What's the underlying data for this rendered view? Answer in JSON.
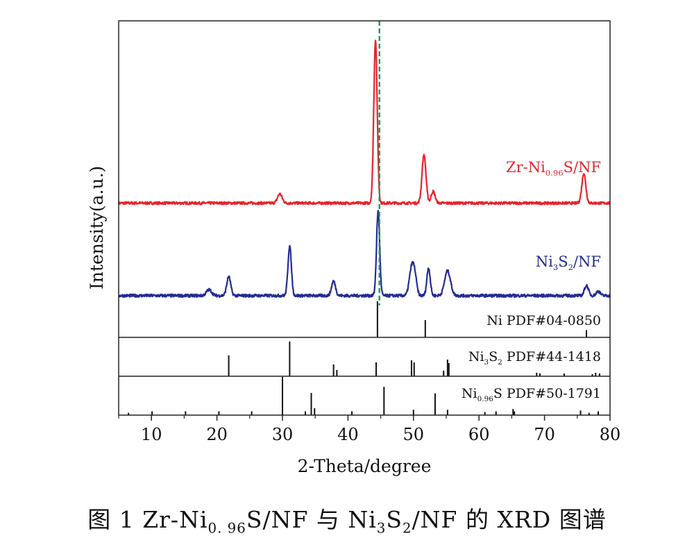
{
  "chart_data": {
    "type": "line",
    "xlabel": "2-Theta/degree",
    "ylabel": "Intensity(a.u.)",
    "xlim": [
      5,
      80
    ],
    "xticks": [
      10,
      20,
      30,
      40,
      50,
      60,
      70,
      80
    ],
    "reference_line_x": 44.8,
    "reference_line_color": "#1a9a55",
    "series": [
      {
        "name": "Zr-Ni0.96S/NF",
        "label_main": "Zr-Ni",
        "label_sub": "0.96",
        "label_tail": "S/NF",
        "color": "#e8232b",
        "baseline": 0.1,
        "noise": 0.08,
        "peaks": [
          {
            "x": 29.6,
            "h": 0.55,
            "w": 0.35
          },
          {
            "x": 44.2,
            "h": 9.8,
            "w": 0.26
          },
          {
            "x": 51.6,
            "h": 2.9,
            "w": 0.3
          },
          {
            "x": 53.0,
            "h": 0.7,
            "w": 0.3
          },
          {
            "x": 76.0,
            "h": 1.8,
            "w": 0.3
          }
        ]
      },
      {
        "name": "Ni3S2/NF",
        "label_main": "Ni",
        "label_sub": "3",
        "label_mid": "S",
        "label_sub2": "2",
        "label_tail": "/NF",
        "color": "#232c93",
        "baseline": 0.1,
        "noise": 0.1,
        "peaks": [
          {
            "x": 18.8,
            "h": 0.4,
            "w": 0.4
          },
          {
            "x": 21.8,
            "h": 1.3,
            "w": 0.3
          },
          {
            "x": 31.1,
            "h": 3.4,
            "w": 0.26
          },
          {
            "x": 37.8,
            "h": 1.0,
            "w": 0.3
          },
          {
            "x": 44.6,
            "h": 5.8,
            "w": 0.24
          },
          {
            "x": 49.7,
            "h": 1.8,
            "w": 0.35
          },
          {
            "x": 50.2,
            "h": 1.2,
            "w": 0.3
          },
          {
            "x": 52.3,
            "h": 1.9,
            "w": 0.26
          },
          {
            "x": 55.2,
            "h": 1.7,
            "w": 0.45
          },
          {
            "x": 76.4,
            "h": 0.7,
            "w": 0.3
          },
          {
            "x": 78.2,
            "h": 0.3,
            "w": 0.3
          }
        ]
      }
    ],
    "reference_patterns": [
      {
        "label_main": "Ni PDF#04-0850",
        "sticks": [
          [
            44.5,
            1.0
          ],
          [
            51.8,
            0.48
          ],
          [
            76.4,
            0.2
          ]
        ]
      },
      {
        "label_main": "Ni",
        "label_sub": "3",
        "label_mid": "S",
        "label_sub2": "2",
        "label_tail": " PDF#44-1418",
        "sticks": [
          [
            21.8,
            0.6
          ],
          [
            31.1,
            1.0
          ],
          [
            37.8,
            0.34
          ],
          [
            38.3,
            0.18
          ],
          [
            44.3,
            0.4
          ],
          [
            49.7,
            0.46
          ],
          [
            50.1,
            0.4
          ],
          [
            54.6,
            0.16
          ],
          [
            55.2,
            0.48
          ],
          [
            55.4,
            0.38
          ],
          [
            68.8,
            0.1
          ],
          [
            69.3,
            0.08
          ],
          [
            73.0,
            0.08
          ],
          [
            77.3,
            0.06
          ],
          [
            77.8,
            0.1
          ],
          [
            78.4,
            0.08
          ]
        ]
      },
      {
        "label_main": "Ni",
        "label_sub": "0.96",
        "label_tail": "S PDF#50-1791",
        "sticks": [
          [
            6.5,
            0.06
          ],
          [
            10.1,
            0.1
          ],
          [
            15.2,
            0.1
          ],
          [
            20.3,
            0.1
          ],
          [
            25.3,
            0.1
          ],
          [
            30.0,
            1.0
          ],
          [
            33.5,
            0.1
          ],
          [
            34.4,
            0.58
          ],
          [
            34.9,
            0.18
          ],
          [
            40.6,
            0.1
          ],
          [
            45.5,
            0.74
          ],
          [
            50.0,
            0.14
          ],
          [
            53.3,
            0.57
          ],
          [
            55.2,
            0.14
          ],
          [
            60.9,
            0.08
          ],
          [
            62.6,
            0.1
          ],
          [
            65.2,
            0.16
          ],
          [
            65.4,
            0.1
          ],
          [
            75.5,
            0.12
          ],
          [
            76.8,
            0.06
          ],
          [
            78.2,
            0.1
          ]
        ]
      }
    ]
  },
  "caption": {
    "prefix": "图 1   Zr-Ni",
    "sub1": "0. 96",
    "part2": "S/NF 与 Ni",
    "sub2": "3",
    "part3": "S",
    "sub3": "2",
    "suffix": "/NF 的 XRD 图谱"
  }
}
